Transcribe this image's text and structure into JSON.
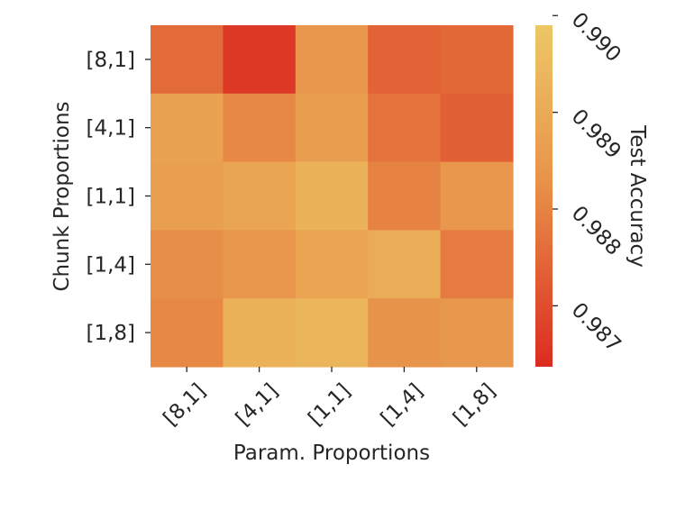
{
  "chart_data": {
    "type": "heatmap",
    "title": "",
    "xlabel": "Param. Proportions",
    "ylabel": "Chunk Proportions",
    "x_categories": [
      "[8,1]",
      "[4,1]",
      "[1,1]",
      "[1,4]",
      "[1,8]"
    ],
    "y_categories": [
      "[8,1]",
      "[4,1]",
      "[1,1]",
      "[1,4]",
      "[1,8]"
    ],
    "values": [
      [
        0.98755,
        0.9866,
        0.9884,
        0.9874,
        0.9875
      ],
      [
        0.98875,
        0.9881,
        0.9886,
        0.9877,
        0.98735
      ],
      [
        0.98865,
        0.98885,
        0.98925,
        0.988,
        0.9884
      ],
      [
        0.9882,
        0.9884,
        0.9888,
        0.98905,
        0.98785
      ],
      [
        0.9881,
        0.98925,
        0.98935,
        0.9883,
        0.98845
      ]
    ],
    "colorbar": {
      "label": "Test Accuracy",
      "range": [
        0.98637,
        0.9899
      ],
      "ticks": [
        "0.987",
        "0.988",
        "0.989",
        "0.990"
      ],
      "tick_values": [
        0.987,
        0.988,
        0.989,
        0.99
      ],
      "colormap_low": "#dc2b20",
      "colormap_mid": "#e8944a",
      "colormap_high": "#edc765"
    },
    "grid": false
  }
}
